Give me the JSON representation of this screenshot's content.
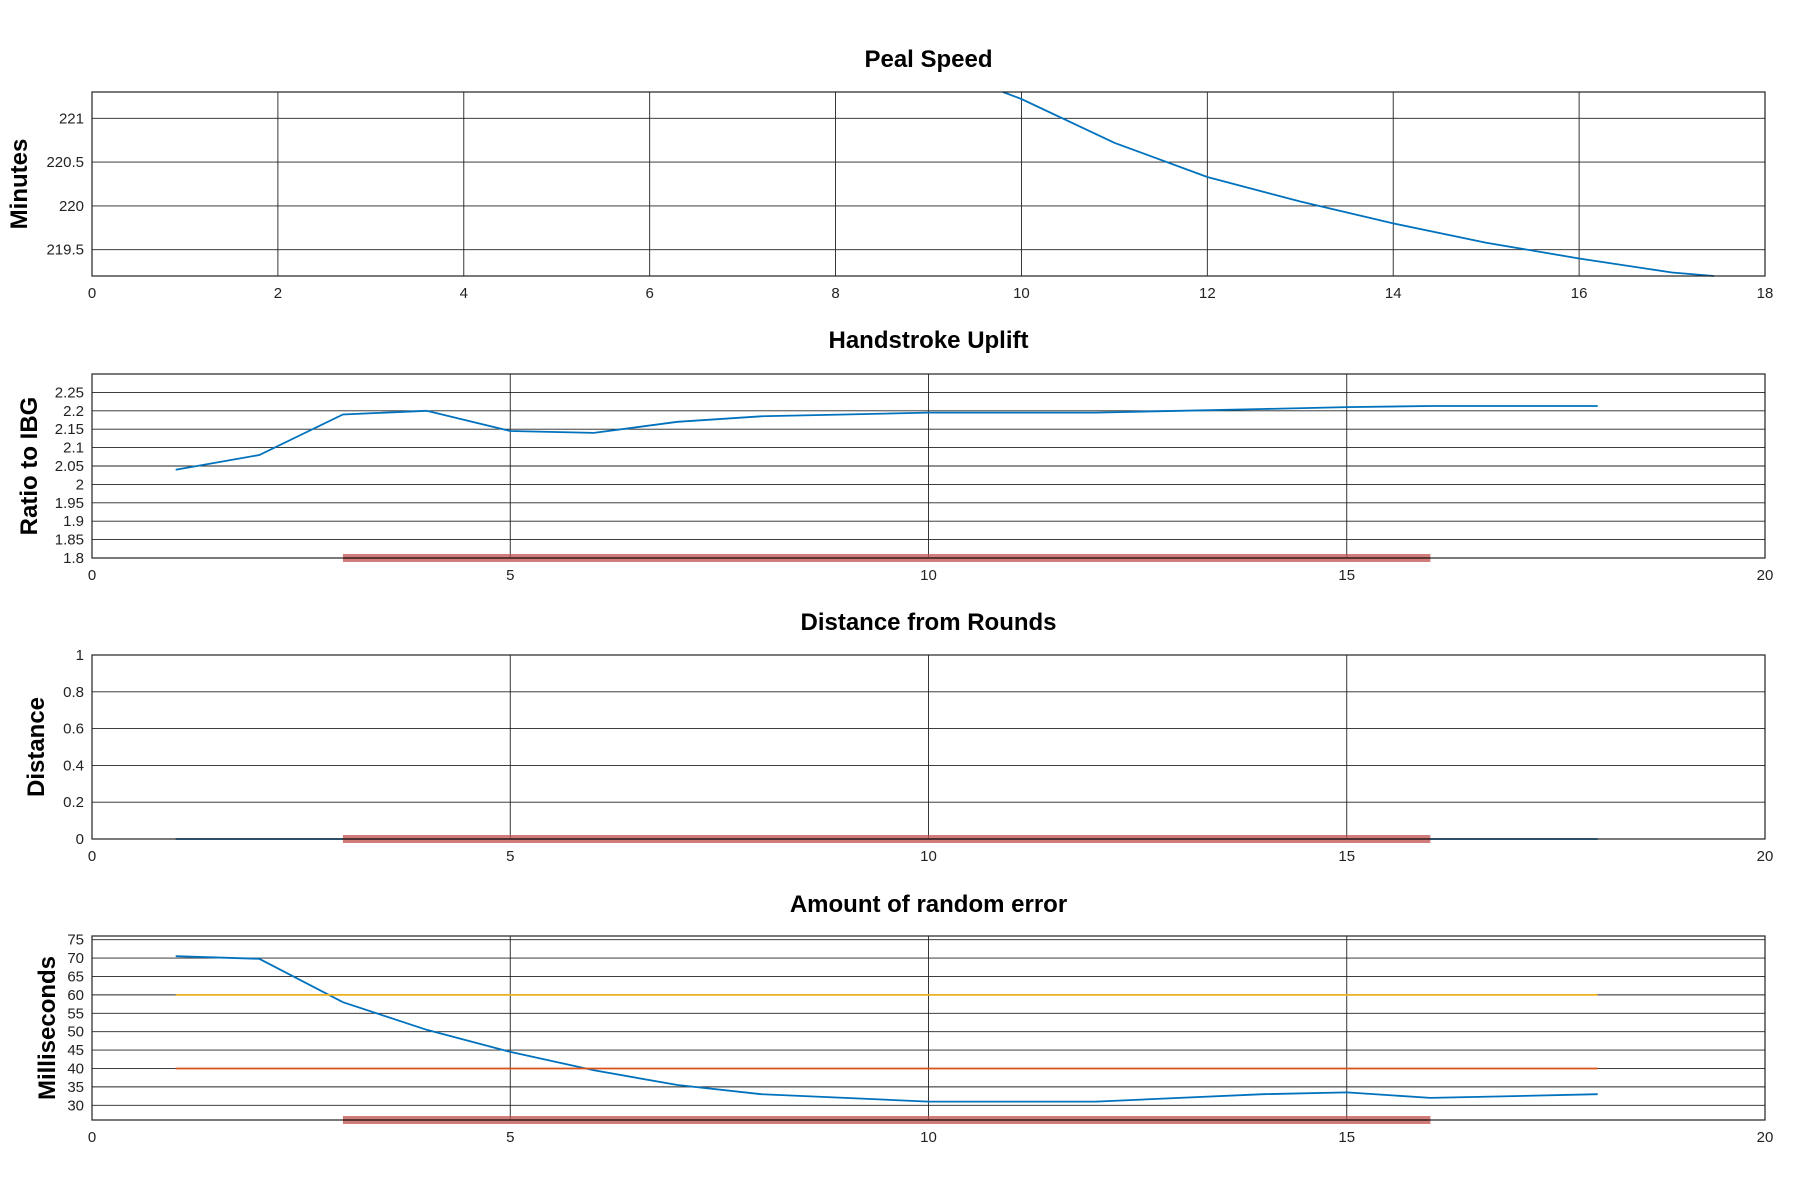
{
  "chart_data": [
    {
      "type": "line",
      "title": "Peal Speed",
      "xlabel": "",
      "ylabel": "Minutes",
      "xlim": [
        0,
        18
      ],
      "ylim": [
        219.2,
        221.3
      ],
      "xticks": [
        0,
        2,
        4,
        6,
        8,
        10,
        12,
        14,
        16,
        18
      ],
      "xtick_labels": [
        "0",
        "2",
        "4",
        "6",
        "8",
        "10",
        "12",
        "14",
        "16",
        "18"
      ],
      "yticks": [
        219.5,
        220,
        220.5,
        221
      ],
      "ytick_labels": [
        "219.5",
        "220",
        "220.5",
        "221"
      ],
      "grid": true,
      "series": [
        {
          "color": "#0072bd",
          "x": [
            9.8,
            10,
            11,
            12,
            13,
            14,
            15,
            16,
            17,
            17.45
          ],
          "y": [
            221.3,
            221.22,
            220.72,
            220.33,
            220.05,
            219.8,
            219.58,
            219.4,
            219.24,
            219.2
          ]
        }
      ],
      "markers": []
    },
    {
      "type": "line",
      "title": "Handstroke Uplift",
      "xlabel": "",
      "ylabel": "Ratio to IBG",
      "xlim": [
        0,
        20
      ],
      "ylim": [
        1.8,
        2.3
      ],
      "xticks": [
        0,
        5,
        10,
        15,
        20
      ],
      "xtick_labels": [
        "0",
        "5",
        "10",
        "15",
        "20"
      ],
      "yticks": [
        1.8,
        1.85,
        1.9,
        1.95,
        2,
        2.05,
        2.1,
        2.15,
        2.2,
        2.25
      ],
      "ytick_labels": [
        "1.8",
        "1.85",
        "1.9",
        "1.95",
        "2",
        "2.05",
        "2.1",
        "2.15",
        "2.2",
        "2.25"
      ],
      "grid": true,
      "series": [
        {
          "color": "#0072bd",
          "x": [
            1,
            2,
            3,
            4,
            5,
            6,
            7,
            8,
            9,
            10,
            11,
            12,
            13,
            14,
            15,
            16,
            17,
            18
          ],
          "y": [
            2.04,
            2.08,
            2.19,
            2.2,
            2.145,
            2.14,
            2.17,
            2.185,
            2.19,
            2.195,
            2.195,
            2.195,
            2.2,
            2.205,
            2.21,
            2.213,
            2.213,
            2.213
          ]
        }
      ],
      "markers": [
        {
          "color": "#c0504d",
          "x": [
            3,
            16
          ],
          "y": 1.8
        }
      ]
    },
    {
      "type": "line",
      "title": "Distance from Rounds",
      "xlabel": "",
      "ylabel": "Distance",
      "xlim": [
        0,
        20
      ],
      "ylim": [
        0,
        1
      ],
      "xticks": [
        0,
        5,
        10,
        15,
        20
      ],
      "xtick_labels": [
        "0",
        "5",
        "10",
        "15",
        "20"
      ],
      "yticks": [
        0,
        0.2,
        0.4,
        0.6,
        0.8,
        1
      ],
      "ytick_labels": [
        "0",
        "0.2",
        "0.4",
        "0.6",
        "0.8",
        "1"
      ],
      "grid": true,
      "series": [
        {
          "color": "#0072bd",
          "x": [
            1,
            18
          ],
          "y": [
            0,
            0
          ]
        }
      ],
      "markers": [
        {
          "color": "#c0504d",
          "x": [
            3,
            16
          ],
          "y": 0
        }
      ]
    },
    {
      "type": "line",
      "title": "Amount of random error",
      "xlabel": "",
      "ylabel": "Milliseconds",
      "xlim": [
        0,
        20
      ],
      "ylim": [
        26,
        76
      ],
      "xticks": [
        0,
        5,
        10,
        15,
        20
      ],
      "xtick_labels": [
        "0",
        "5",
        "10",
        "15",
        "20"
      ],
      "yticks": [
        30,
        35,
        40,
        45,
        50,
        55,
        60,
        65,
        70,
        75
      ],
      "ytick_labels": [
        "30",
        "35",
        "40",
        "45",
        "50",
        "55",
        "60",
        "65",
        "70",
        "75"
      ],
      "grid": true,
      "series": [
        {
          "color": "#0072bd",
          "x": [
            1,
            2,
            3,
            4,
            5,
            6,
            7,
            8,
            9,
            10,
            11,
            12,
            13,
            14,
            15,
            16,
            17,
            18
          ],
          "y": [
            70.5,
            69.8,
            58,
            50.5,
            44.5,
            39.5,
            35.5,
            33,
            32,
            31,
            31,
            31,
            32,
            33,
            33.5,
            32,
            32.5,
            33
          ]
        },
        {
          "color": "#edb120",
          "x": [
            1,
            18
          ],
          "y": [
            60,
            60
          ]
        },
        {
          "color": "#d95319",
          "x": [
            1,
            18
          ],
          "y": [
            40,
            40
          ]
        }
      ],
      "markers": [
        {
          "color": "#c0504d",
          "x": [
            3,
            16
          ],
          "y": 26
        }
      ]
    }
  ]
}
